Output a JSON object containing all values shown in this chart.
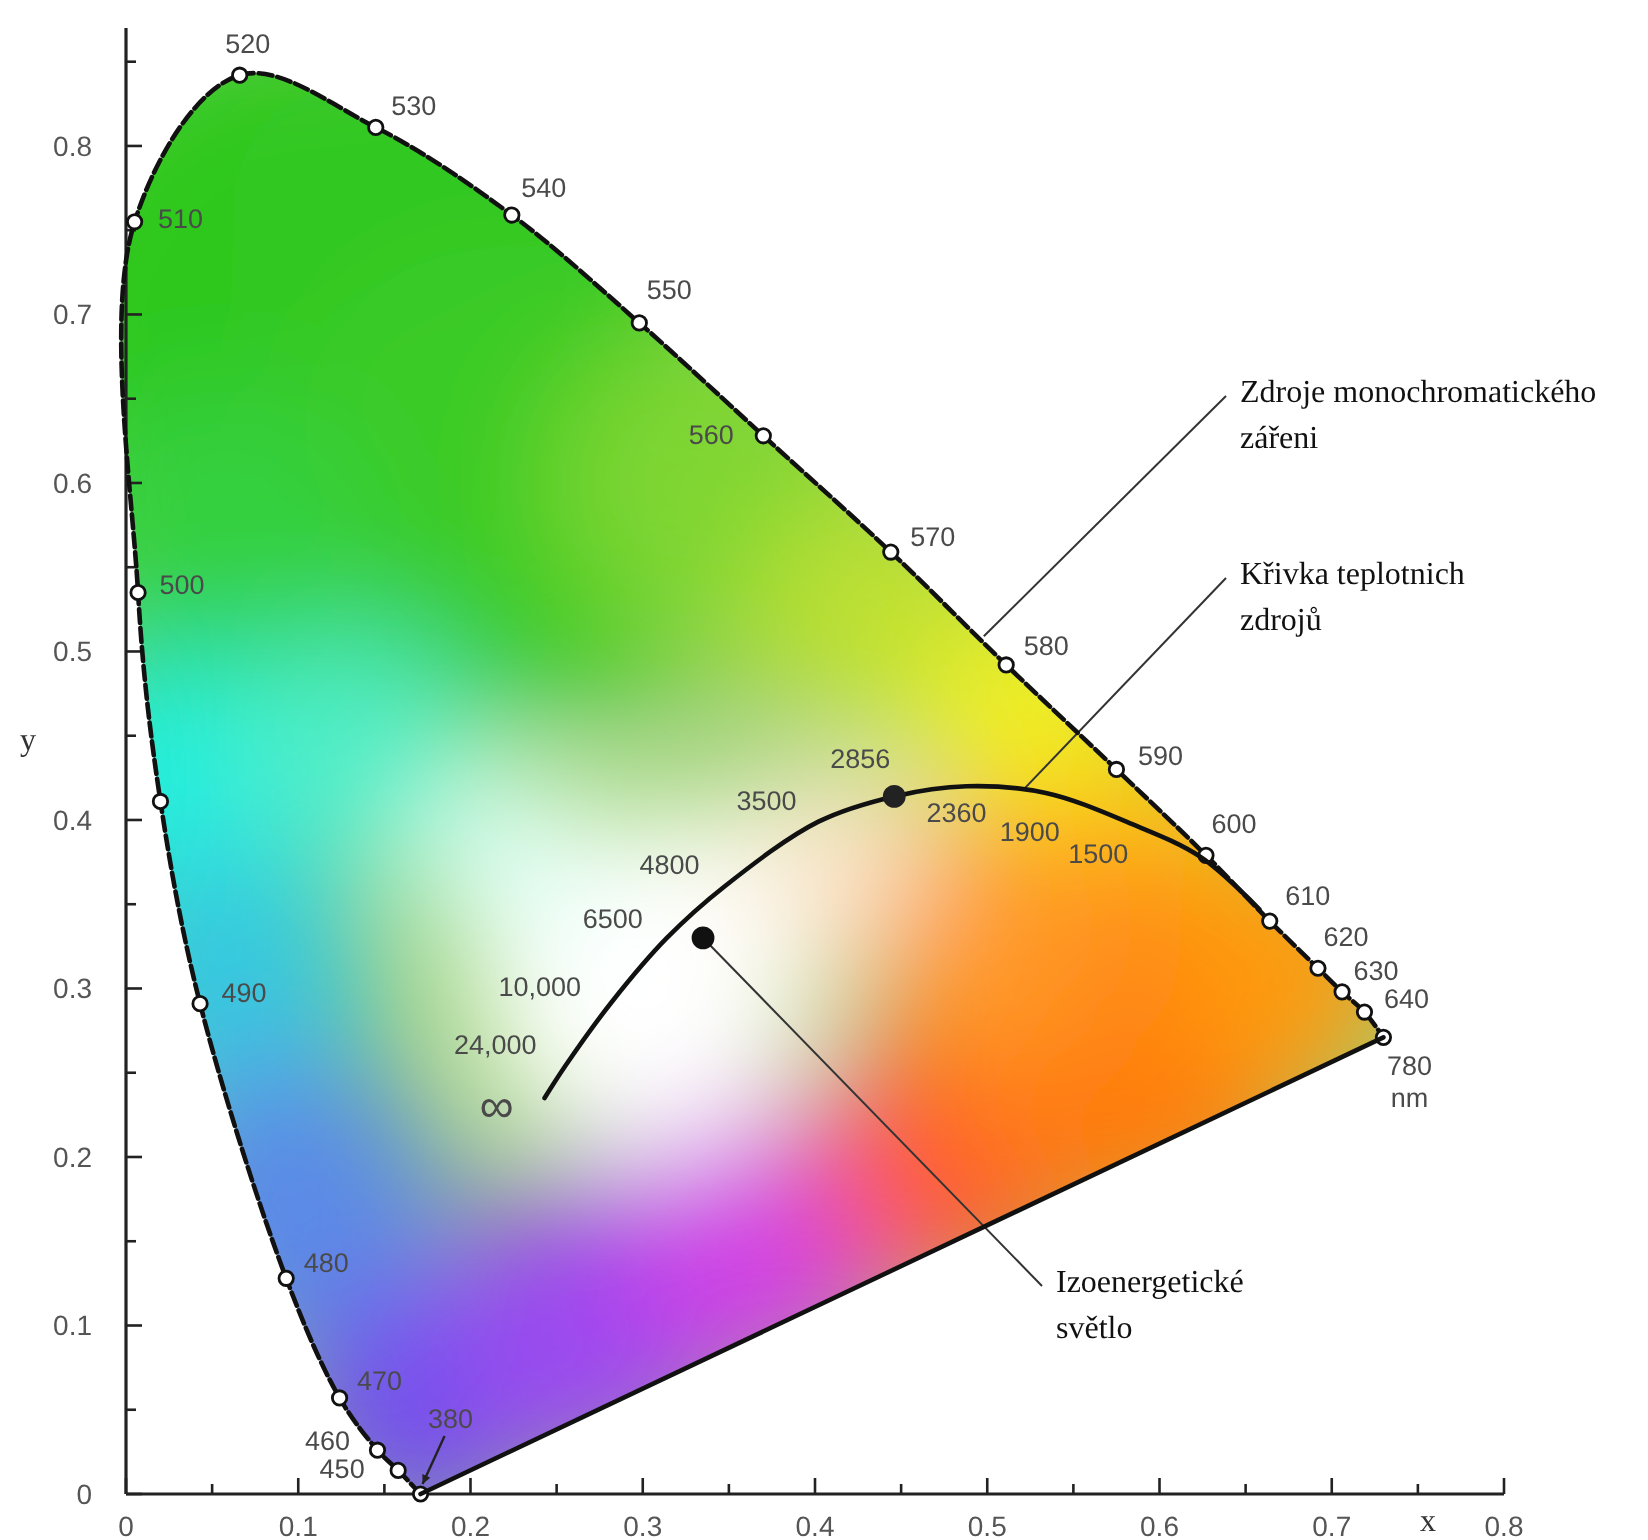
{
  "chart_data": {
    "type": "line",
    "xlabel": "x",
    "ylabel": "y",
    "xlim": [
      0,
      0.8
    ],
    "ylim": [
      0,
      0.87
    ],
    "xticks": [
      0,
      {
        "value": 0.05,
        "label": null
      },
      0.1,
      {
        "value": 0.15,
        "label": null
      },
      0.2,
      {
        "value": 0.25,
        "label": null
      },
      0.3,
      {
        "value": 0.35,
        "label": null
      },
      0.4,
      {
        "value": 0.45,
        "label": null
      },
      0.5,
      {
        "value": 0.55,
        "label": null
      },
      0.6,
      {
        "value": 0.65,
        "label": null
      },
      0.7,
      {
        "value": 0.75,
        "label": null
      },
      0.8
    ],
    "yticks": [
      0,
      {
        "value": 0.05,
        "label": null
      },
      0.1,
      {
        "value": 0.15,
        "label": null
      },
      0.2,
      {
        "value": 0.25,
        "label": null
      },
      0.3,
      {
        "value": 0.35,
        "label": null
      },
      0.4,
      {
        "value": 0.45,
        "label": null
      },
      0.5,
      {
        "value": 0.55,
        "label": null
      },
      0.6,
      {
        "value": 0.65,
        "label": null
      },
      0.7,
      {
        "value": 0.75,
        "label": null
      },
      0.8,
      {
        "value": 0.85,
        "label": null
      }
    ],
    "series": [
      {
        "color": "#111111",
        "line_style": "dashed",
        "marker": "circle",
        "x": [
          0.171,
          0.158,
          0.146,
          0.124,
          0.093,
          0.043,
          0.02,
          0.007,
          0.005,
          0.066,
          0.145,
          0.224,
          0.298,
          0.37,
          0.444,
          0.511,
          0.575,
          0.627,
          0.664,
          0.692,
          0.706,
          0.719,
          0.73
        ],
        "values": [
          0.0,
          0.014,
          0.026,
          0.057,
          0.128,
          0.291,
          0.411,
          0.535,
          0.755,
          0.842,
          0.811,
          0.759,
          0.695,
          0.628,
          0.559,
          0.492,
          0.43,
          0.379,
          0.34,
          0.312,
          0.298,
          0.286,
          0.271
        ]
      },
      {
        "color": "#111111",
        "line_style": "solid",
        "marker": "none",
        "x": [
          0.171,
          0.73
        ],
        "values": [
          0.0,
          0.271
        ]
      },
      {
        "color": "#111111",
        "line_style": "solid",
        "marker": "none",
        "x": [
          0.243,
          0.255,
          0.282,
          0.314,
          0.348,
          0.402,
          0.446,
          0.488,
          0.534,
          0.583,
          0.624,
          0.658
        ],
        "values": [
          0.235,
          0.254,
          0.292,
          0.33,
          0.361,
          0.399,
          0.414,
          0.42,
          0.416,
          0.398,
          0.378,
          0.347
        ]
      },
      {
        "type": "scatter",
        "color": "#222222",
        "marker": "circle",
        "x": [
          0.446
        ],
        "values": [
          0.414
        ]
      },
      {
        "type": "scatter",
        "color": "#111111",
        "marker": "circle",
        "x": [
          0.335
        ],
        "values": [
          0.33
        ]
      }
    ],
    "annotations": [
      {
        "text": "380",
        "x": 0.171,
        "y": 0.0
      },
      {
        "text": "450",
        "x": 0.158,
        "y": 0.014
      },
      {
        "text": "460",
        "x": 0.146,
        "y": 0.026
      },
      {
        "text": "470",
        "x": 0.124,
        "y": 0.057
      },
      {
        "text": "480",
        "x": 0.093,
        "y": 0.128
      },
      {
        "text": "490",
        "x": 0.043,
        "y": 0.291
      },
      {
        "text": "500",
        "x": 0.007,
        "y": 0.535
      },
      {
        "text": "510",
        "x": 0.005,
        "y": 0.755
      },
      {
        "text": "520",
        "x": 0.066,
        "y": 0.842
      },
      {
        "text": "530",
        "x": 0.145,
        "y": 0.811
      },
      {
        "text": "540",
        "x": 0.224,
        "y": 0.759
      },
      {
        "text": "550",
        "x": 0.298,
        "y": 0.695
      },
      {
        "text": "560",
        "x": 0.37,
        "y": 0.628
      },
      {
        "text": "570",
        "x": 0.444,
        "y": 0.559
      },
      {
        "text": "580",
        "x": 0.511,
        "y": 0.492
      },
      {
        "text": "590",
        "x": 0.575,
        "y": 0.43
      },
      {
        "text": "600",
        "x": 0.627,
        "y": 0.379
      },
      {
        "text": "610",
        "x": 0.664,
        "y": 0.34
      },
      {
        "text": "620",
        "x": 0.692,
        "y": 0.312
      },
      {
        "text": "630",
        "x": 0.706,
        "y": 0.298
      },
      {
        "text": "640",
        "x": 0.719,
        "y": 0.286
      },
      {
        "text": "780 nm",
        "x": 0.73,
        "y": 0.271
      },
      {
        "text": "∞",
        "x": 0.243,
        "y": 0.235
      },
      {
        "text": "24,000",
        "x": 0.255,
        "y": 0.254
      },
      {
        "text": "10,000",
        "x": 0.282,
        "y": 0.292
      },
      {
        "text": "6500",
        "x": 0.314,
        "y": 0.33
      },
      {
        "text": "4800",
        "x": 0.348,
        "y": 0.361
      },
      {
        "text": "3500",
        "x": 0.402,
        "y": 0.399
      },
      {
        "text": "2856",
        "x": 0.446,
        "y": 0.414
      },
      {
        "text": "2360",
        "x": 0.488,
        "y": 0.42
      },
      {
        "text": "1900",
        "x": 0.534,
        "y": 0.416
      },
      {
        "text": "1500",
        "x": 0.583,
        "y": 0.398
      },
      {
        "text": "Zdroje monochromatického zářeni",
        "x": 0.498,
        "y": 0.509
      },
      {
        "text": "Křivka teplotnich zdrojů",
        "x": 0.521,
        "y": 0.418
      },
      {
        "text": "Izoenergetické světlo",
        "x": 0.335,
        "y": 0.33
      }
    ]
  }
}
